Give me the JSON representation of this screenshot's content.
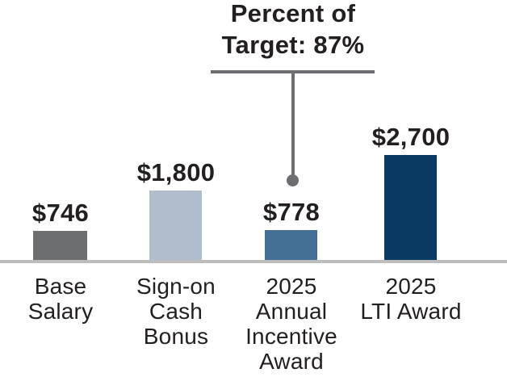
{
  "annotation": {
    "line1": "Percent of",
    "line2": "Target: 87%",
    "full_text": "Percent of Target: 87%",
    "points_to_category": "2025 Annual Incentive Award"
  },
  "chart_data": {
    "type": "bar",
    "title": "Percent of Target: 87%",
    "xlabel": "",
    "ylabel": "",
    "categories": [
      "Base Salary",
      "Sign-on Cash Bonus",
      "2025 Annual Incentive Award",
      "2025 LTI Award"
    ],
    "values": [
      746,
      1800,
      778,
      2700
    ],
    "value_labels": [
      "$746",
      "$1,800",
      "$778",
      "$2,700"
    ],
    "ylim": [
      0,
      2800
    ],
    "grid": false,
    "legend": false,
    "annotation_note": "Callout 'Percent of Target: 87%' connects by a line and dot to the 2025 Annual Incentive Award bar",
    "bars": [
      {
        "category": "Base Salary",
        "label_lines": [
          "Base",
          "Salary"
        ],
        "value": 746,
        "value_label": "$746",
        "color": "#6d6e70"
      },
      {
        "category": "Sign-on Cash Bonus",
        "label_lines": [
          "Sign-on",
          "Cash",
          "Bonus"
        ],
        "value": 1800,
        "value_label": "$1,800",
        "color": "#b0bdcc"
      },
      {
        "category": "2025 Annual Incentive Award",
        "label_lines": [
          "2025",
          "Annual",
          "Incentive",
          "Award"
        ],
        "value": 778,
        "value_label": "$778",
        "color": "#457096"
      },
      {
        "category": "2025 LTI Award",
        "label_lines": [
          "2025",
          "LTI Award"
        ],
        "value": 2700,
        "value_label": "$2,700",
        "color": "#0a3a62"
      }
    ]
  },
  "colors": {
    "text": "#231f20",
    "connector": "#6d6e71",
    "axis_line": "#bdbdbd",
    "background": "#ffffff"
  }
}
